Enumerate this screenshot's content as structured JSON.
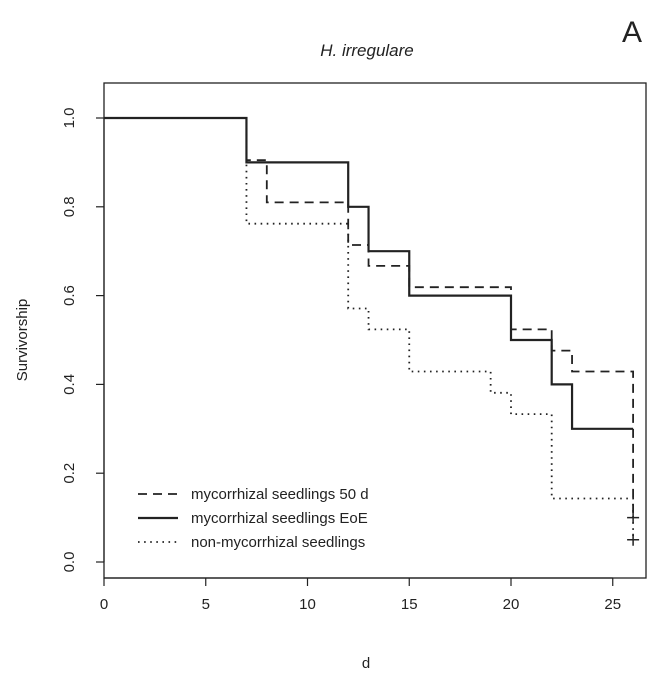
{
  "panel_label": "A",
  "chart_data": {
    "type": "line",
    "subtype": "step",
    "title": "H. irregulare",
    "xlabel": "d",
    "ylabel": "Survivorship",
    "xlim": [
      0,
      26.5
    ],
    "ylim": [
      0,
      1.0
    ],
    "xticks": [
      "0",
      "5",
      "10",
      "15",
      "20",
      "25"
    ],
    "xtick_values": [
      0,
      5,
      10,
      15,
      20,
      25
    ],
    "yticks": [
      "0.0",
      "0.2",
      "0.4",
      "0.6",
      "0.8",
      "1.0"
    ],
    "ytick_values": [
      0,
      0.2,
      0.4,
      0.6,
      0.8,
      1.0
    ],
    "grid": false,
    "legend_position": "bottom-left",
    "series": [
      {
        "name": "mycorrhizal seedlings 50 d",
        "style": "dashed",
        "color": "#222222",
        "steps": [
          [
            0,
            1.0
          ],
          [
            7,
            0.905
          ],
          [
            8,
            0.81
          ],
          [
            12,
            0.714
          ],
          [
            13,
            0.667
          ],
          [
            15,
            0.619
          ],
          [
            20,
            0.524
          ],
          [
            22,
            0.476
          ],
          [
            23,
            0.429
          ],
          [
            26,
            0.1
          ]
        ],
        "censor_marks": [
          [
            26,
            0.1
          ]
        ]
      },
      {
        "name": "mycorrhizal seedlings EoE",
        "style": "solid",
        "color": "#222222",
        "steps": [
          [
            0,
            1.0
          ],
          [
            7,
            0.9
          ],
          [
            12,
            0.8
          ],
          [
            13,
            0.7
          ],
          [
            15,
            0.6
          ],
          [
            20,
            0.5
          ],
          [
            22,
            0.4
          ],
          [
            23,
            0.3
          ],
          [
            26,
            0.3
          ]
        ],
        "censor_marks": []
      },
      {
        "name": "non-mycorrhizal seedlings",
        "style": "dotted",
        "color": "#222222",
        "steps": [
          [
            0,
            1.0
          ],
          [
            7,
            0.762
          ],
          [
            12,
            0.571
          ],
          [
            13,
            0.524
          ],
          [
            15,
            0.429
          ],
          [
            19,
            0.381
          ],
          [
            20,
            0.333
          ],
          [
            22,
            0.143
          ],
          [
            26,
            0.05
          ]
        ],
        "censor_marks": [
          [
            26,
            0.05
          ]
        ]
      }
    ]
  }
}
